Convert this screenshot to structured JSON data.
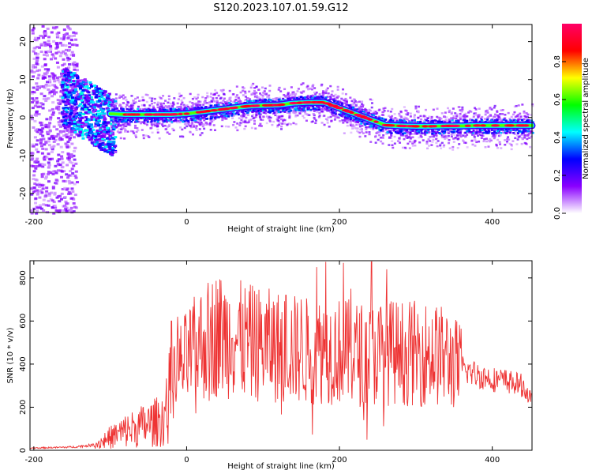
{
  "title": "S120.2023.107.01.59.G12",
  "chart_data": [
    {
      "type": "heatmap",
      "xlabel": "Height of straight line (km)",
      "ylabel": "Frequency (Hz)",
      "xlim": [
        -205,
        452
      ],
      "ylim": [
        -25,
        24.5
      ],
      "x_ticks": [
        -200,
        0,
        200,
        400
      ],
      "y_ticks": [
        -20,
        -10,
        0,
        10,
        20
      ],
      "colorbar": {
        "label": "Normalized spectral amplitude",
        "range": [
          0,
          1
        ],
        "ticks": [
          0.0,
          0.2,
          0.4,
          0.6,
          0.8
        ],
        "tick_labels": [
          "0.0",
          "0.2",
          "0.4",
          "0.6",
          "0.8"
        ],
        "colormap": [
          "#ffffff",
          "#8a00ff",
          "#0000ff",
          "#00ffff",
          "#00ff00",
          "#ffff00",
          "#ff0000",
          "#ff0066"
        ]
      },
      "ridge": {
        "x": [
          -100,
          -80,
          -60,
          -40,
          -20,
          0,
          20,
          40,
          60,
          80,
          100,
          120,
          140,
          160,
          180,
          200,
          220,
          240,
          260,
          280,
          300,
          320,
          340,
          360,
          380,
          400,
          420,
          450
        ],
        "y": [
          1,
          0.8,
          0.8,
          0.8,
          0.8,
          1,
          1.5,
          2,
          2.5,
          3,
          3.2,
          3.3,
          3.8,
          4,
          4,
          2.5,
          1,
          -0.5,
          -2,
          -2.2,
          -2.3,
          -2.3,
          -2.2,
          -2.2,
          -2.1,
          -2.1,
          -2.1,
          -2.1
        ]
      },
      "grid": false
    },
    {
      "type": "line",
      "xlabel": "Height of straight line (km)",
      "ylabel": "SNR (10 * v/v)",
      "xlim": [
        -205,
        452
      ],
      "ylim": [
        0,
        880
      ],
      "x_ticks": [
        -200,
        0,
        200,
        400
      ],
      "y_ticks": [
        0,
        200,
        400,
        600,
        800
      ],
      "color": "#ee3333",
      "envelope": {
        "x": [
          -205,
          -150,
          -120,
          -100,
          -80,
          -60,
          -40,
          -30,
          -20,
          -10,
          0,
          20,
          40,
          60,
          80,
          100,
          120,
          140,
          160,
          180,
          200,
          220,
          240,
          260,
          280,
          300,
          320,
          340,
          360,
          380,
          400,
          420,
          440,
          452
        ],
        "y": [
          10,
          15,
          25,
          60,
          90,
          110,
          130,
          150,
          280,
          380,
          420,
          500,
          540,
          520,
          500,
          490,
          480,
          470,
          460,
          470,
          460,
          450,
          440,
          460,
          450,
          450,
          450,
          430,
          380,
          350,
          330,
          320,
          300,
          220
        ]
      },
      "spikes": [
        {
          "x": -20,
          "y": 600
        },
        {
          "x": -12,
          "y": 620
        },
        {
          "x": 60,
          "y": 520
        },
        {
          "x": 130,
          "y": 720
        },
        {
          "x": 150,
          "y": 700
        },
        {
          "x": 170,
          "y": 850
        },
        {
          "x": 182,
          "y": 875
        },
        {
          "x": 205,
          "y": 870
        },
        {
          "x": 215,
          "y": 750
        },
        {
          "x": 242,
          "y": 875
        },
        {
          "x": 262,
          "y": 840
        },
        {
          "x": 280,
          "y": 600
        }
      ],
      "grid": false
    }
  ]
}
